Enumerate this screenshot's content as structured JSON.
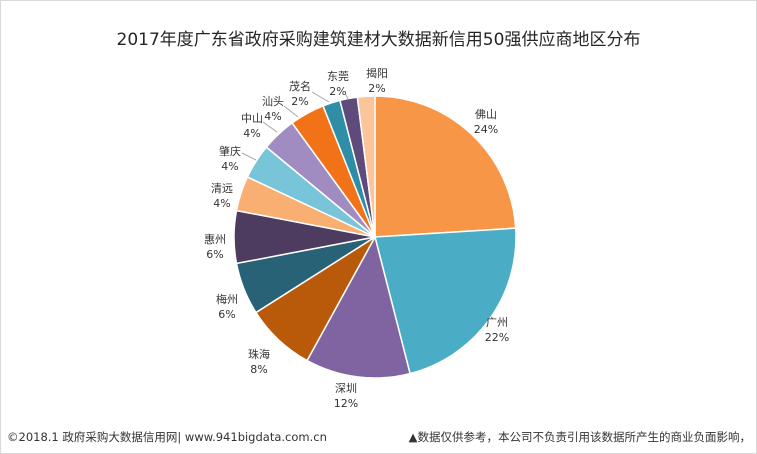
{
  "chart_data": {
    "type": "pie",
    "title": "2017年度广东省政府采购建筑建材大数据新信用50强供应商地区分布",
    "categories": [
      "佛山",
      "广州",
      "深圳",
      "珠海",
      "梅州",
      "惠州",
      "清远",
      "肇庆",
      "中山",
      "汕头",
      "茂名",
      "东莞",
      "揭阳"
    ],
    "values": [
      24,
      22,
      12,
      8,
      6,
      6,
      4,
      4,
      4,
      4,
      2,
      2,
      2
    ],
    "labels": [
      "24%",
      "22%",
      "12%",
      "8%",
      "6%",
      "6%",
      "4%",
      "4%",
      "4%",
      "4%",
      "2%",
      "2%",
      "2%"
    ],
    "colors": [
      "#F79646",
      "#4BACC6",
      "#8064A2",
      "#B95A0B",
      "#276276",
      "#4D3B60",
      "#F9AF71",
      "#78C4D8",
      "#A08CC0",
      "#F27218",
      "#2F8DA6",
      "#5E4A7B",
      "#FBC49A"
    ]
  },
  "footer": {
    "source": "©2018.1 政府采购大数据信用网| www.941bigdata.com.cn",
    "disclaimer": "▲数据仅供参考，本公司不负责引用该数据所产生的商业负面影响，"
  }
}
